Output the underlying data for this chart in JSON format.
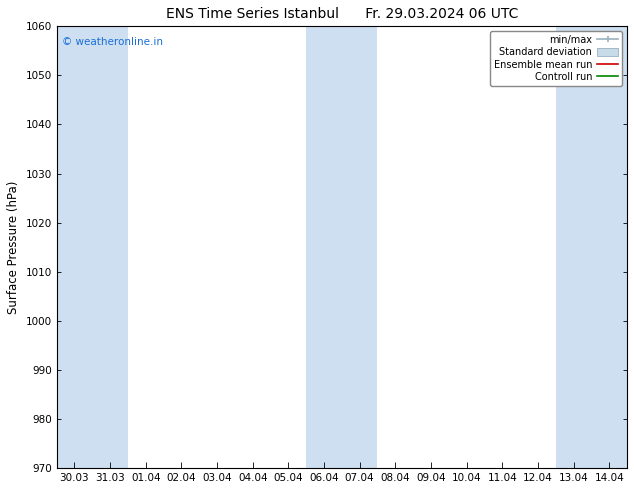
{
  "title": "ENS Time Series Istanbul",
  "title2": "Fr. 29.03.2024 06 UTC",
  "ylabel": "Surface Pressure (hPa)",
  "ylim": [
    970,
    1060
  ],
  "yticks": [
    970,
    980,
    990,
    1000,
    1010,
    1020,
    1030,
    1040,
    1050,
    1060
  ],
  "x_labels": [
    "30.03",
    "31.03",
    "01.04",
    "02.04",
    "03.04",
    "04.04",
    "05.04",
    "06.04",
    "07.04",
    "08.04",
    "09.04",
    "10.04",
    "11.04",
    "12.04",
    "13.04",
    "14.04"
  ],
  "n_ticks": 16,
  "shaded_indices": [
    0,
    1,
    7,
    8,
    14,
    15
  ],
  "shade_color": "#cddff0",
  "background_color": "#ffffff",
  "watermark": "© weatheronline.in",
  "watermark_color": "#1a6ed8",
  "legend_items": [
    "min/max",
    "Standard deviation",
    "Ensemble mean run",
    "Controll run"
  ],
  "title_fontsize": 10,
  "tick_fontsize": 7.5,
  "ylabel_fontsize": 8.5
}
